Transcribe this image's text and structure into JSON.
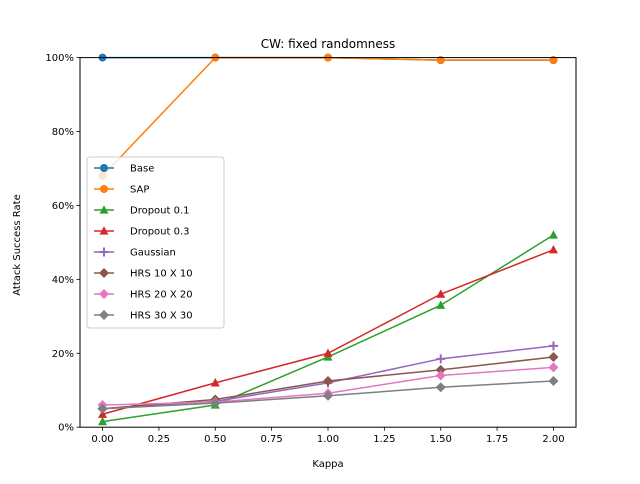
{
  "chart_data": {
    "type": "line",
    "title": "CW: fixed randomness",
    "xlabel": "Kappa",
    "ylabel": "Attack Success Rate",
    "x": [
      0.0,
      0.5,
      1.0,
      1.5,
      2.0
    ],
    "xlim": [
      -0.1,
      2.1
    ],
    "ylim": [
      0,
      1
    ],
    "x_ticks": [
      "0.00",
      "0.25",
      "0.50",
      "0.75",
      "1.00",
      "1.25",
      "1.50",
      "1.75",
      "2.00"
    ],
    "y_ticks": [
      "0%",
      "20%",
      "40%",
      "60%",
      "80%",
      "100%"
    ],
    "legend_position": "center-left",
    "series": [
      {
        "name": "Base",
        "color": "#1f77b4",
        "marker": "circle",
        "values": [
          1.0,
          1.0,
          1.0,
          0.993,
          0.993
        ]
      },
      {
        "name": "SAP",
        "color": "#ff7f0e",
        "marker": "circle",
        "values": [
          0.68,
          1.0,
          1.0,
          0.993,
          0.993
        ]
      },
      {
        "name": "Dropout 0.1",
        "color": "#2ca02c",
        "marker": "triangle",
        "values": [
          0.015,
          0.06,
          0.19,
          0.33,
          0.52
        ]
      },
      {
        "name": "Dropout 0.3",
        "color": "#d62728",
        "marker": "triangle",
        "values": [
          0.035,
          0.12,
          0.2,
          0.36,
          0.48
        ]
      },
      {
        "name": "Gaussian",
        "color": "#9467bd",
        "marker": "plus",
        "values": [
          0.05,
          0.07,
          0.12,
          0.185,
          0.22
        ]
      },
      {
        "name": "HRS 10 X 10",
        "color": "#8c564b",
        "marker": "diamond",
        "values": [
          0.05,
          0.075,
          0.125,
          0.155,
          0.19
        ]
      },
      {
        "name": "HRS 20 X 20",
        "color": "#e377c2",
        "marker": "diamond",
        "values": [
          0.06,
          0.068,
          0.092,
          0.14,
          0.162
        ]
      },
      {
        "name": "HRS 30 X 30",
        "color": "#7f7f7f",
        "marker": "diamond",
        "values": [
          0.05,
          0.065,
          0.085,
          0.108,
          0.125
        ]
      }
    ]
  }
}
